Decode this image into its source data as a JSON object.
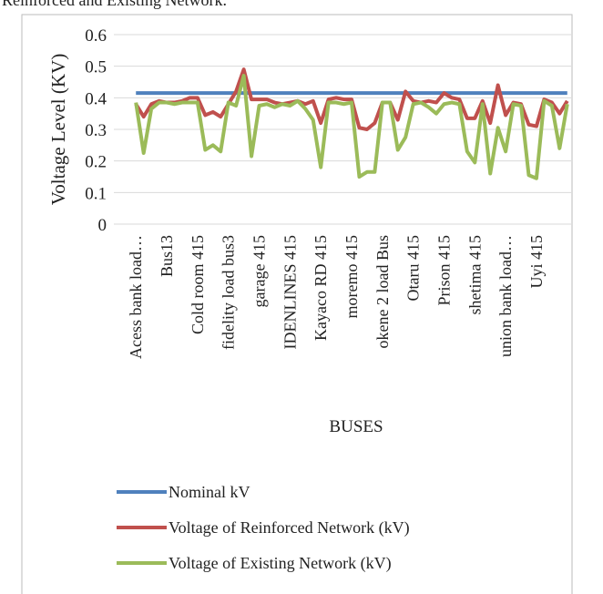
{
  "caption": "Reinforced and Existing Network.",
  "chart_data": {
    "type": "line",
    "x_label": "BUSES",
    "y_label": "Voltage Level (KV)",
    "categories": [
      "Acess bank load…",
      null,
      null,
      null,
      "Bus13",
      null,
      null,
      null,
      "Cold room 415",
      null,
      null,
      null,
      "fidelity  load bus3",
      null,
      null,
      null,
      "garage 415",
      null,
      null,
      null,
      "IDENLINES 415",
      null,
      null,
      null,
      "Kayaco RD 415",
      null,
      null,
      null,
      "moremo 415",
      null,
      null,
      null,
      "okene 2 load Bus",
      null,
      null,
      null,
      "Otaru 415",
      null,
      null,
      null,
      "Prison 415",
      null,
      null,
      null,
      "shetima 415",
      null,
      null,
      null,
      "union bank load…",
      null,
      null,
      null,
      "Uyi  415",
      null,
      null,
      null,
      null
    ],
    "ylim": [
      0,
      0.6
    ],
    "yticks": [
      0,
      0.1,
      0.2,
      0.3,
      0.4,
      0.5,
      0.6
    ],
    "grid": true,
    "legend": "bottom",
    "series": [
      {
        "name": "Nominal kV",
        "color": "#4f81bd",
        "values": [
          0.415,
          0.415,
          0.415,
          0.415,
          0.415,
          0.415,
          0.415,
          0.415,
          0.415,
          0.415,
          0.415,
          0.415,
          0.415,
          0.415,
          0.415,
          0.415,
          0.415,
          0.415,
          0.415,
          0.415,
          0.415,
          0.415,
          0.415,
          0.415,
          0.415,
          0.415,
          0.415,
          0.415,
          0.415,
          0.415,
          0.415,
          0.415,
          0.415,
          0.415,
          0.415,
          0.415,
          0.415,
          0.415,
          0.415,
          0.415,
          0.415,
          0.415,
          0.415,
          0.415,
          0.415,
          0.415,
          0.415,
          0.415,
          0.415,
          0.415,
          0.415,
          0.415,
          0.415,
          0.415,
          0.415,
          0.415,
          0.415
        ]
      },
      {
        "name": "Voltage of Reinforced Network (kV)",
        "color": "#c0504d",
        "values": [
          0.38,
          0.34,
          0.38,
          0.39,
          0.385,
          0.385,
          0.39,
          0.4,
          0.4,
          0.345,
          0.355,
          0.34,
          0.38,
          0.42,
          0.49,
          0.395,
          0.395,
          0.395,
          0.385,
          0.38,
          0.385,
          0.39,
          0.38,
          0.39,
          0.32,
          0.395,
          0.4,
          0.395,
          0.395,
          0.305,
          0.3,
          0.32,
          0.385,
          0.385,
          0.33,
          0.42,
          0.39,
          0.385,
          0.39,
          0.385,
          0.415,
          0.4,
          0.395,
          0.335,
          0.335,
          0.39,
          0.32,
          0.44,
          0.345,
          0.385,
          0.38,
          0.315,
          0.31,
          0.395,
          0.385,
          0.35,
          0.39
        ]
      },
      {
        "name": "Voltage of Existing Network (kV)",
        "color": "#9bbb59",
        "values": [
          0.385,
          0.225,
          0.365,
          0.385,
          0.385,
          0.38,
          0.385,
          0.385,
          0.385,
          0.235,
          0.25,
          0.23,
          0.385,
          0.375,
          0.47,
          0.215,
          0.375,
          0.38,
          0.37,
          0.38,
          0.375,
          0.39,
          0.365,
          0.33,
          0.18,
          0.385,
          0.385,
          0.38,
          0.385,
          0.15,
          0.165,
          0.165,
          0.385,
          0.385,
          0.235,
          0.275,
          0.38,
          0.385,
          0.37,
          0.35,
          0.38,
          0.385,
          0.38,
          0.23,
          0.195,
          0.38,
          0.16,
          0.305,
          0.23,
          0.38,
          0.375,
          0.155,
          0.145,
          0.39,
          0.375,
          0.24,
          0.38
        ]
      }
    ]
  }
}
